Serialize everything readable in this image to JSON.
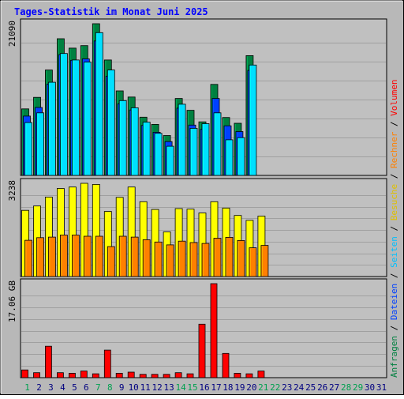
{
  "chart_data": {
    "type": "bar",
    "title": "Tages-Statistik im Monat Juni 2025",
    "categories": [
      "1",
      "2",
      "3",
      "4",
      "5",
      "6",
      "7",
      "8",
      "9",
      "10",
      "11",
      "12",
      "13",
      "14",
      "15",
      "16",
      "17",
      "18",
      "19",
      "20",
      "21",
      "22",
      "23",
      "24",
      "25",
      "26",
      "27",
      "28",
      "29",
      "30",
      "31"
    ],
    "weekend_days": [
      "1",
      "7",
      "8",
      "14",
      "15",
      "21",
      "22",
      "28",
      "29"
    ],
    "panels": [
      {
        "id": "requests",
        "max_label": "21090",
        "max": 21090,
        "series": [
          {
            "name": "Anfragen",
            "color": "#008040",
            "values": [
              9250,
              10850,
              14650,
              19000,
              17700,
              18050,
              21090,
              16050,
              11750,
              10900,
              8100,
              7100,
              5550,
              10700,
              9050,
              7450,
              12650,
              8050,
              7250,
              16650
            ]
          },
          {
            "name": "Dateien",
            "color": "#0040ff",
            "values": [
              8250,
              9450,
              12700,
              16800,
              16000,
              16200,
              18700,
              13800,
              9950,
              9100,
              6950,
              6000,
              4700,
              9350,
              7000,
              6400,
              10700,
              6900,
              6100,
              14600
            ]
          },
          {
            "name": "Seiten",
            "color": "#00e0ff",
            "values": [
              7350,
              8700,
              12950,
              16950,
              16050,
              15750,
              19850,
              14650,
              10400,
              9400,
              7400,
              5850,
              4050,
              9900,
              6550,
              7200,
              8700,
              4950,
              5250,
              15350
            ]
          }
        ]
      },
      {
        "id": "visits",
        "max_label": "3238",
        "max": 3238,
        "series": [
          {
            "name": "Besuche",
            "color": "#ffff00",
            "values": [
              2300,
              2450,
              2760,
              3060,
              3110,
              3238,
              3200,
              2260,
              2750,
              3110,
              2600,
              2330,
              1550,
              2360,
              2340,
              2210,
              2600,
              2380,
              2120,
              1950,
              2100
            ]
          },
          {
            "name": "Rechner",
            "color": "#ff8000",
            "values": [
              1260,
              1350,
              1370,
              1440,
              1440,
              1400,
              1400,
              1040,
              1400,
              1370,
              1280,
              1200,
              1100,
              1230,
              1180,
              1150,
              1330,
              1360,
              1250,
              1000,
              1080
            ]
          }
        ]
      },
      {
        "id": "volume",
        "max_label": "17.06 GB",
        "max": 17.06,
        "series": [
          {
            "name": "Volumen",
            "color": "#ff0000",
            "values": [
              1.4,
              0.9,
              5.7,
              0.9,
              0.8,
              1.2,
              0.7,
              5.0,
              0.8,
              1.0,
              0.6,
              0.6,
              0.6,
              0.9,
              0.7,
              9.7,
              17.06,
              4.4,
              0.8,
              0.7,
              1.2
            ]
          }
        ]
      }
    ],
    "right_legend": [
      {
        "label": "Anfragen",
        "color": "#008040"
      },
      {
        "label": "Dateien",
        "color": "#0040ff"
      },
      {
        "label": "Seiten",
        "color": "#00c0ff"
      },
      {
        "label": "Besuche",
        "color": "#e0c000"
      },
      {
        "label": "Rechner",
        "color": "#ff8000"
      },
      {
        "label": "Volumen",
        "color": "#ff0000"
      }
    ],
    "legend_separator": "/",
    "colors": {
      "plot_bg": "#c0c0c0",
      "frame_bg": "#b8b8b8",
      "grid": "#a0a0a0",
      "title": "#0000ff",
      "weekday_label": "#000080",
      "weekend_label": "#00a050"
    }
  }
}
